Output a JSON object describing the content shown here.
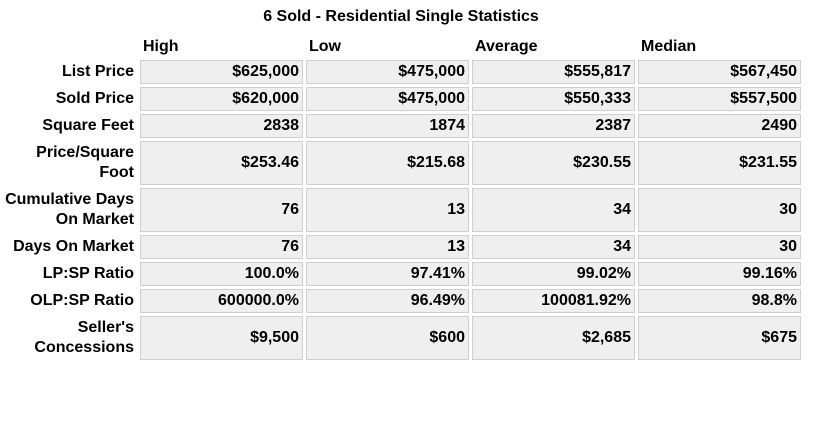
{
  "title": "6 Sold - Residential Single Statistics",
  "columns": [
    "High",
    "Low",
    "Average",
    "Median"
  ],
  "rows": [
    {
      "label": "List Price",
      "values": [
        "$625,000",
        "$475,000",
        "$555,817",
        "$567,450"
      ]
    },
    {
      "label": "Sold Price",
      "values": [
        "$620,000",
        "$475,000",
        "$550,333",
        "$557,500"
      ]
    },
    {
      "label": "Square Feet",
      "values": [
        "2838",
        "1874",
        "2387",
        "2490"
      ]
    },
    {
      "label": "Price/Square Foot",
      "values": [
        "$253.46",
        "$215.68",
        "$230.55",
        "$231.55"
      ]
    },
    {
      "label": "Cumulative Days On Market",
      "values": [
        "76",
        "13",
        "34",
        "30"
      ]
    },
    {
      "label": "Days On Market",
      "values": [
        "76",
        "13",
        "34",
        "30"
      ]
    },
    {
      "label": "LP:SP Ratio",
      "values": [
        "100.0%",
        "97.41%",
        "99.02%",
        "99.16%"
      ]
    },
    {
      "label": "OLP:SP Ratio",
      "values": [
        "600000.0%",
        "96.49%",
        "100081.92%",
        "98.8%"
      ]
    },
    {
      "label": "Seller's Concessions",
      "values": [
        "$9,500",
        "$600",
        "$2,685",
        "$675"
      ]
    }
  ]
}
